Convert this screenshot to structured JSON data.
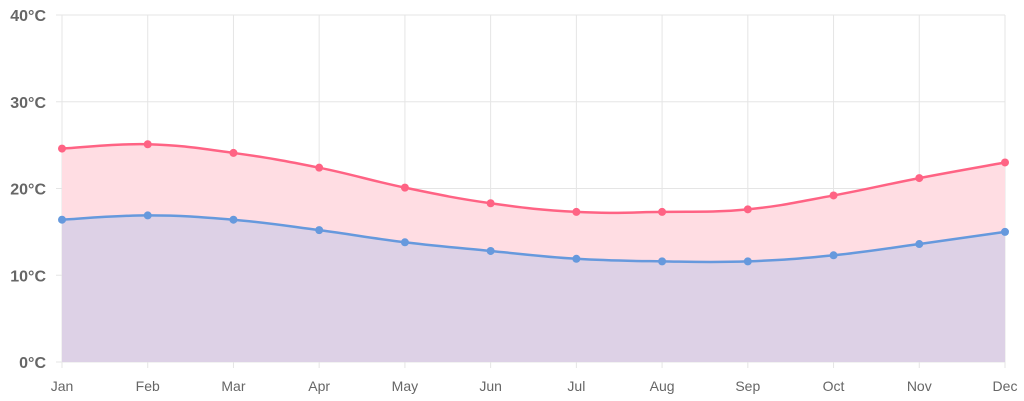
{
  "chart_data": {
    "type": "area",
    "categories": [
      "Jan",
      "Feb",
      "Mar",
      "Apr",
      "May",
      "Jun",
      "Jul",
      "Aug",
      "Sep",
      "Oct",
      "Nov",
      "Dec"
    ],
    "y_ticks": [
      "0°C",
      "10°C",
      "20°C",
      "30°C",
      "40°C"
    ],
    "ylim": [
      0,
      40
    ],
    "grid": true,
    "legend": "none",
    "title": "",
    "xlabel": "",
    "ylabel": "",
    "series": [
      {
        "values": [
          24.6,
          25.1,
          24.1,
          22.4,
          20.1,
          18.3,
          17.3,
          17.3,
          17.6,
          19.2,
          21.2,
          23.0
        ],
        "line_color": "#ff6384",
        "fill_color": "#ffdde3"
      },
      {
        "values": [
          16.4,
          16.9,
          16.4,
          15.2,
          13.8,
          12.8,
          11.9,
          11.6,
          11.6,
          12.3,
          13.6,
          15.0
        ],
        "line_color": "#6699dd",
        "fill_color": "#ddd1e6"
      }
    ]
  }
}
